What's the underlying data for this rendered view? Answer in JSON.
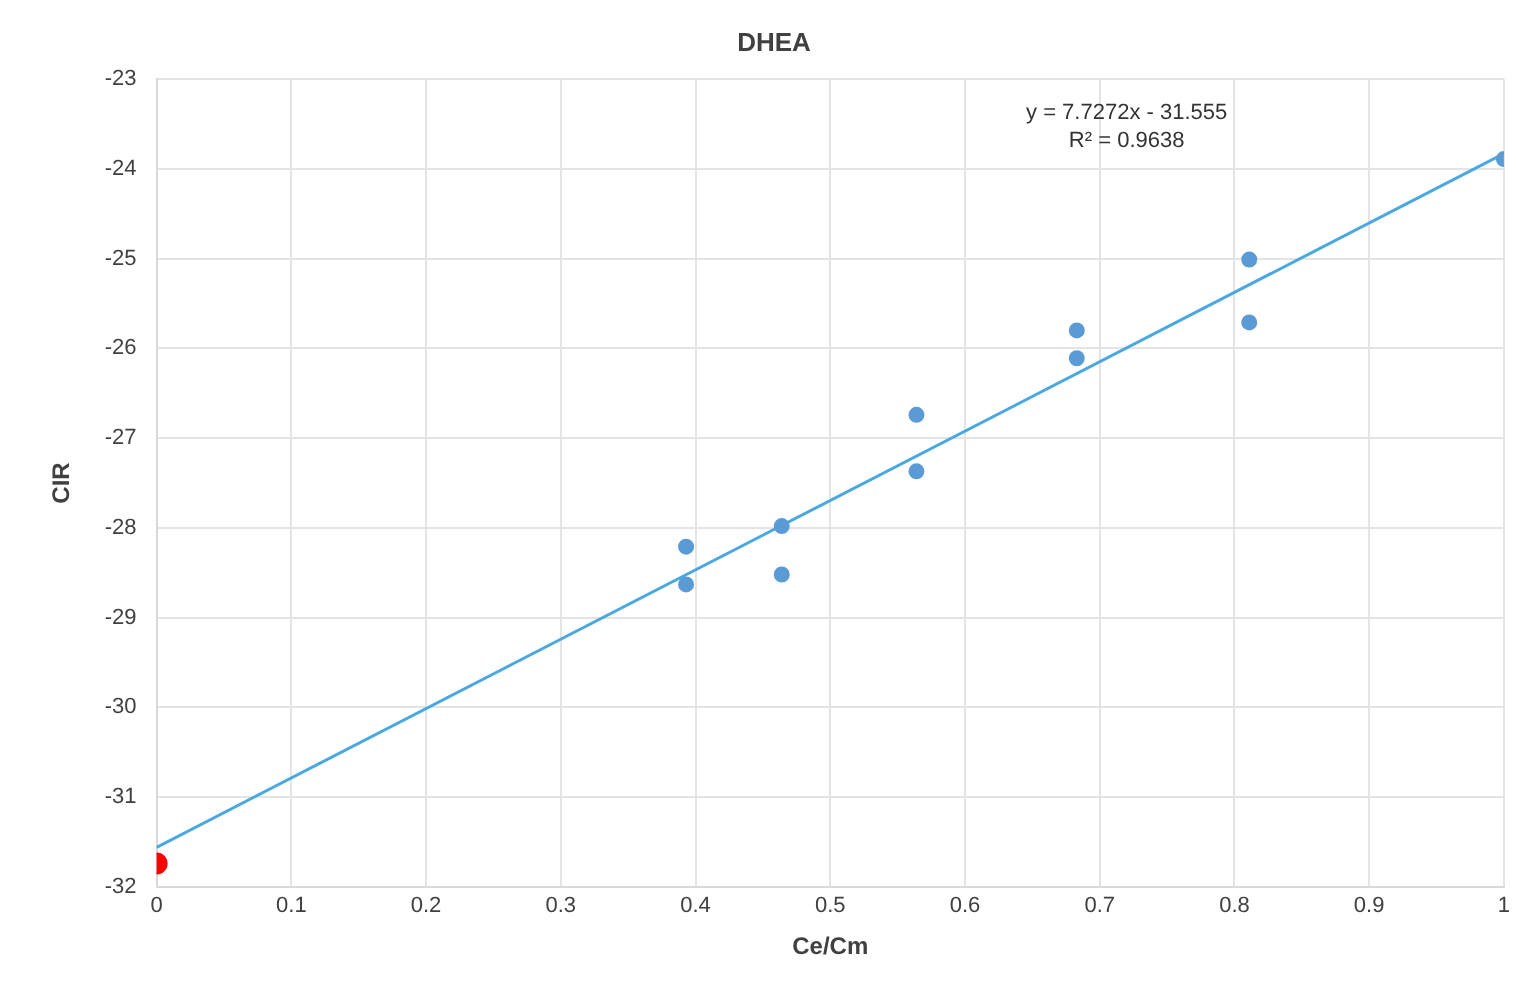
{
  "chart_data": {
    "type": "scatter",
    "title": "DHEA",
    "xlabel": "Ce/Cm",
    "ylabel": "CIR",
    "xlim": [
      0,
      1
    ],
    "xticks": [
      0,
      0.1,
      0.2,
      0.3,
      0.4,
      0.5,
      0.6,
      0.7,
      0.8,
      0.9,
      1
    ],
    "ylim": [
      -32,
      -23
    ],
    "yticks": [
      -32,
      -31,
      -30,
      -29,
      -28,
      -27,
      -26,
      -25,
      -24,
      -23
    ],
    "grid": true,
    "legend": false,
    "annotations": [
      "y = 7.7272x - 31.555",
      "R² = 0.9638"
    ],
    "series": [
      {
        "color": "#5b9bd5",
        "marker": "circle",
        "x": [
          0.393,
          0.393,
          0.464,
          0.464,
          0.564,
          0.564,
          0.683,
          0.683,
          0.811,
          0.811,
          1
        ],
        "values": [
          -28.21,
          -28.63,
          -27.98,
          -28.52,
          -26.74,
          -27.37,
          -25.8,
          -26.11,
          -25.01,
          -25.71,
          -23.89
        ]
      },
      {
        "color": "#ff0000",
        "marker": "circle",
        "x": [
          0
        ],
        "values": [
          -31.74
        ]
      },
      {
        "type": "line",
        "color": "#4aa8e0",
        "marker": "none",
        "x": [
          0,
          1
        ],
        "values": [
          -31.56,
          -23.83
        ]
      }
    ]
  }
}
